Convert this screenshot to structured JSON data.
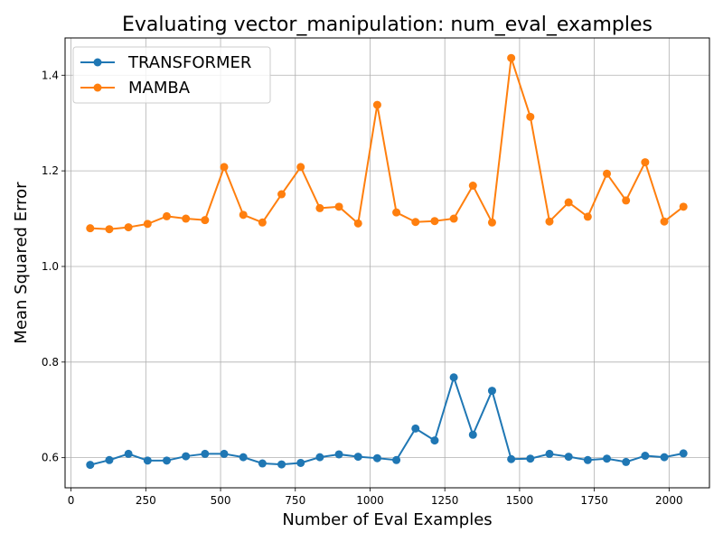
{
  "chart_data": {
    "type": "line",
    "title": "Evaluating vector_manipulation: num_eval_examples",
    "xlabel": "Number of Eval Examples",
    "ylabel": "Mean Squared Error",
    "xlim": [
      -20,
      2135
    ],
    "ylim": [
      0.537,
      1.478
    ],
    "xticks": [
      0,
      250,
      500,
      750,
      1000,
      1250,
      1500,
      1750,
      2000
    ],
    "yticks": [
      0.6,
      0.8,
      1.0,
      1.2,
      1.4
    ],
    "ytick_labels": [
      "0.6",
      "0.8",
      "1.0",
      "1.2",
      "1.4"
    ],
    "grid": true,
    "legend_position": "top-left",
    "x": [
      64,
      128,
      192,
      256,
      320,
      384,
      448,
      512,
      576,
      640,
      704,
      768,
      832,
      896,
      960,
      1024,
      1088,
      1152,
      1216,
      1280,
      1344,
      1408,
      1472,
      1536,
      1600,
      1664,
      1728,
      1792,
      1856,
      1920,
      1984,
      2048
    ],
    "series": [
      {
        "name": "TRANSFORMER",
        "color": "#1f77b4",
        "values": [
          0.585,
          0.595,
          0.608,
          0.594,
          0.594,
          0.603,
          0.608,
          0.608,
          0.601,
          0.588,
          0.586,
          0.589,
          0.601,
          0.607,
          0.602,
          0.599,
          0.595,
          0.661,
          0.636,
          0.768,
          0.648,
          0.74,
          0.597,
          0.598,
          0.608,
          0.602,
          0.595,
          0.598,
          0.591,
          0.604,
          0.601,
          0.609
        ]
      },
      {
        "name": "MAMBA",
        "color": "#ff7f0e",
        "values": [
          1.08,
          1.078,
          1.082,
          1.089,
          1.105,
          1.1,
          1.097,
          1.208,
          1.108,
          1.092,
          1.151,
          1.208,
          1.122,
          1.125,
          1.09,
          1.338,
          1.113,
          1.093,
          1.095,
          1.1,
          1.169,
          1.092,
          1.436,
          1.313,
          1.094,
          1.134,
          1.104,
          1.194,
          1.138,
          1.218,
          1.094,
          1.125
        ]
      }
    ]
  }
}
